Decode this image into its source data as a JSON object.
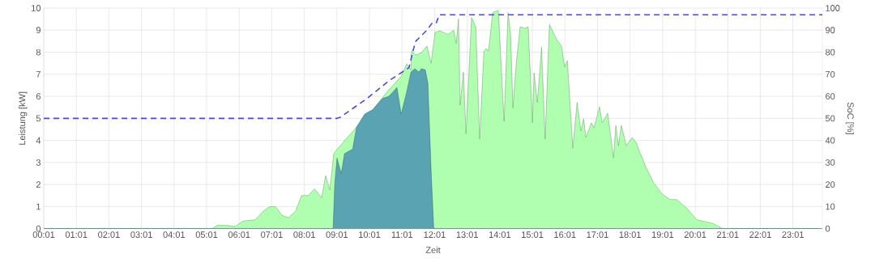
{
  "chart_data": {
    "type": "area",
    "xlabel": "Zeit",
    "ylabel": "Leistung [kW]",
    "y2label": "SoC [%]",
    "grid": true,
    "marker": "none",
    "xlim": [
      0.017,
      23.92
    ],
    "xticks": [
      {
        "value": 0.017,
        "label": "00:01"
      },
      {
        "value": 1.017,
        "label": "01:01"
      },
      {
        "value": 2.017,
        "label": "02:01"
      },
      {
        "value": 3.017,
        "label": "03:01"
      },
      {
        "value": 4.017,
        "label": "04:01"
      },
      {
        "value": 5.017,
        "label": "05:01"
      },
      {
        "value": 6.017,
        "label": "06:01"
      },
      {
        "value": 7.017,
        "label": "07:01"
      },
      {
        "value": 8.017,
        "label": "08:01"
      },
      {
        "value": 9.017,
        "label": "09:01"
      },
      {
        "value": 10.017,
        "label": "10:01"
      },
      {
        "value": 11.017,
        "label": "11:01"
      },
      {
        "value": 12.017,
        "label": "12:01"
      },
      {
        "value": 13.017,
        "label": "13:01"
      },
      {
        "value": 14.017,
        "label": "14:01"
      },
      {
        "value": 15.017,
        "label": "15:01"
      },
      {
        "value": 16.017,
        "label": "16:01"
      },
      {
        "value": 17.017,
        "label": "17:01"
      },
      {
        "value": 18.017,
        "label": "18:01"
      },
      {
        "value": 19.017,
        "label": "19:01"
      },
      {
        "value": 20.017,
        "label": "20:01"
      },
      {
        "value": 21.017,
        "label": "21:01"
      },
      {
        "value": 22.017,
        "label": "22:01"
      },
      {
        "value": 23.017,
        "label": "23:01"
      }
    ],
    "ylim": [
      0,
      10
    ],
    "yticks": [
      0,
      1,
      2,
      3,
      4,
      5,
      6,
      7,
      8,
      9,
      10
    ],
    "y2lim": [
      0,
      100
    ],
    "y2ticks": [
      0,
      10,
      20,
      30,
      40,
      50,
      60,
      70,
      80,
      90,
      100
    ],
    "series": [
      {
        "color": "#b0ffb0",
        "x": [
          0.017,
          5.19,
          5.34,
          5.64,
          5.89,
          6.14,
          6.51,
          6.76,
          6.96,
          7.13,
          7.33,
          7.53,
          7.75,
          7.93,
          8.13,
          8.33,
          8.55,
          8.67,
          8.8,
          8.92,
          9.05,
          9.2,
          9.62,
          10.12,
          10.61,
          10.99,
          11.16,
          11.29,
          11.31,
          11.44,
          11.61,
          11.78,
          11.91,
          12.03,
          12.18,
          12.43,
          12.6,
          12.68,
          12.75,
          12.8,
          12.9,
          12.98,
          13.15,
          13.28,
          13.4,
          13.53,
          13.6,
          13.67,
          13.8,
          13.97,
          14.15,
          14.27,
          14.35,
          14.42,
          14.52,
          14.64,
          14.79,
          14.89,
          15.02,
          15.07,
          15.17,
          15.3,
          15.41,
          15.54,
          15.76,
          15.91,
          16.01,
          16.09,
          16.26,
          16.39,
          16.51,
          16.59,
          16.66,
          16.83,
          16.91,
          17.08,
          17.16,
          17.33,
          17.51,
          17.58,
          17.66,
          17.75,
          17.9,
          18.08,
          18.2,
          18.5,
          18.75,
          19.0,
          19.25,
          19.45,
          19.74,
          20.07,
          20.56,
          20.86,
          23.92
        ],
        "values": [
          0,
          0,
          0.15,
          0.15,
          0.1,
          0.35,
          0.4,
          0.8,
          1.0,
          1.0,
          0.6,
          0.5,
          0.8,
          1.5,
          1.5,
          1.8,
          1.4,
          2.4,
          1.75,
          3.4,
          3.65,
          3.9,
          4.6,
          5.4,
          6.3,
          6.9,
          7.47,
          7.2,
          8.05,
          7.87,
          7.98,
          8.28,
          7.5,
          8.9,
          8.97,
          8.8,
          9.0,
          8.4,
          9.5,
          5.6,
          7.1,
          4.3,
          9.57,
          9.15,
          4.06,
          8.05,
          8.17,
          8.05,
          9.8,
          9.9,
          4.87,
          9.8,
          8.78,
          5.47,
          7.43,
          9.15,
          9.08,
          9.15,
          4.8,
          7.06,
          5.72,
          8.23,
          4.06,
          9.26,
          8.58,
          8.28,
          7.32,
          7.62,
          3.64,
          5.72,
          4.43,
          4.98,
          4.13,
          4.8,
          4.57,
          5.53,
          4.8,
          5.23,
          3.21,
          4.68,
          3.76,
          4.68,
          3.76,
          4.13,
          3.9,
          2.79,
          2.06,
          1.57,
          1.32,
          1.32,
          0.95,
          0.4,
          0.24,
          0,
          0
        ]
      },
      {
        "color": "#5aa3b3",
        "x": [
          0.017,
          8.9,
          8.95,
          9.02,
          9.15,
          9.25,
          9.37,
          9.5,
          9.62,
          9.87,
          10.12,
          10.42,
          10.61,
          10.74,
          10.86,
          10.99,
          11.16,
          11.29,
          11.41,
          11.53,
          11.61,
          11.73,
          11.81,
          11.91,
          11.99,
          23.92
        ],
        "values": [
          0,
          0,
          2.0,
          3.2,
          2.5,
          3.4,
          3.5,
          3.6,
          4.6,
          5.2,
          5.4,
          5.9,
          6.0,
          6.2,
          6.4,
          5.2,
          6.2,
          7.1,
          7.25,
          7.1,
          7.25,
          7.2,
          6.6,
          2.6,
          0,
          0
        ]
      },
      {
        "type": "line",
        "axis": "y2",
        "line_style": "dashed",
        "color": "#4b4bdc",
        "x": [
          0.017,
          9.02,
          9.12,
          9.94,
          10.61,
          11.23,
          11.36,
          11.44,
          11.78,
          11.93,
          12.06,
          12.16,
          23.92
        ],
        "values": [
          50,
          50,
          50.5,
          59,
          67,
          73,
          81,
          85,
          90,
          93,
          93,
          97,
          97
        ]
      }
    ]
  }
}
